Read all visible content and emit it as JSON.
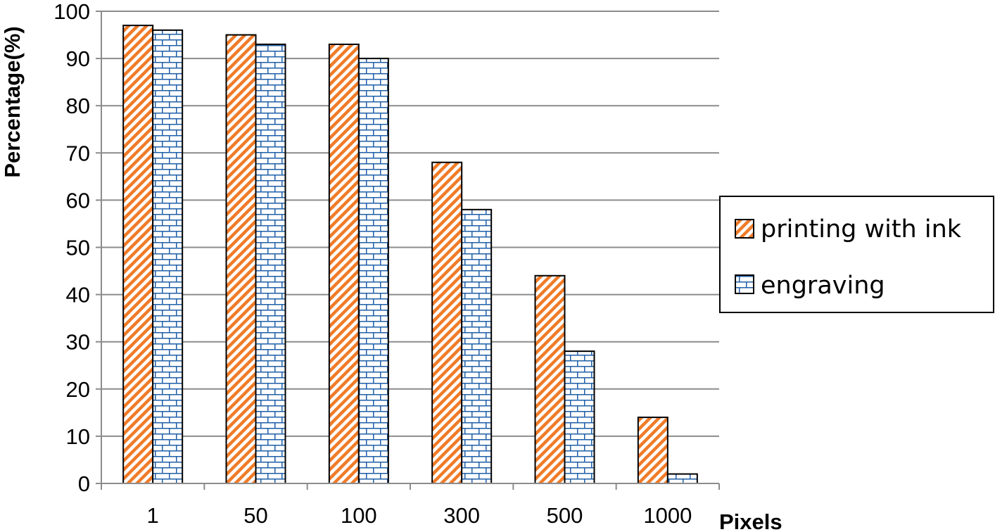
{
  "chart_data": {
    "type": "bar",
    "title": "",
    "xlabel": "Pixels",
    "ylabel": "Percentage(%)",
    "categories": [
      "1",
      "50",
      "100",
      "300",
      "500",
      "1000"
    ],
    "series": [
      {
        "name": "printing with ink",
        "values": [
          97,
          95,
          93,
          68,
          44,
          14
        ],
        "color": "#f07b28",
        "pattern": "diagonal-stripes"
      },
      {
        "name": "engraving",
        "values": [
          96,
          93,
          90,
          58,
          28,
          2
        ],
        "color": "#1f5fa8",
        "pattern": "brick"
      }
    ],
    "ylim": [
      0,
      100
    ],
    "yticks": [
      0,
      10,
      20,
      30,
      40,
      50,
      60,
      70,
      80,
      90,
      100
    ],
    "grid": true,
    "legend": {
      "position": "right",
      "entries": [
        "printing with ink",
        "engraving"
      ]
    }
  }
}
